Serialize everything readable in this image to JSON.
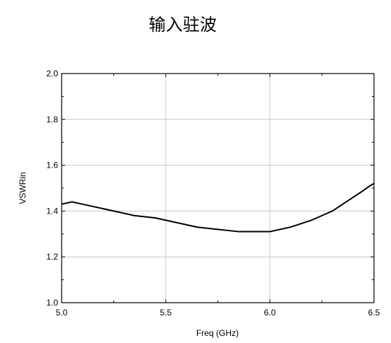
{
  "chart_data": {
    "type": "line",
    "title": "输入驻波",
    "xlabel": "Freq (GHz)",
    "ylabel": "VSWRin",
    "xlim": [
      5.0,
      6.5
    ],
    "ylim": [
      1.0,
      2.0
    ],
    "x_ticks": [
      5.0,
      5.5,
      6.0,
      6.5
    ],
    "x_tick_labels": [
      "5.0",
      "5.5",
      "6.0",
      "6.5"
    ],
    "y_ticks": [
      1.0,
      1.2,
      1.4,
      1.6,
      1.8,
      2.0
    ],
    "y_tick_labels": [
      "1.0",
      "1.2",
      "1.4",
      "1.6",
      "1.8",
      "2.0"
    ],
    "grid": true,
    "series": [
      {
        "color": "#000000",
        "x": [
          5.0,
          5.05,
          5.1,
          5.15,
          5.2,
          5.25,
          5.3,
          5.35,
          5.4,
          5.45,
          5.5,
          5.55,
          5.6,
          5.65,
          5.7,
          5.75,
          5.8,
          5.85,
          5.9,
          5.95,
          6.0,
          6.05,
          6.1,
          6.15,
          6.2,
          6.25,
          6.3,
          6.35,
          6.4,
          6.45,
          6.48,
          6.5
        ],
        "y": [
          1.43,
          1.44,
          1.43,
          1.42,
          1.41,
          1.4,
          1.39,
          1.38,
          1.375,
          1.37,
          1.36,
          1.35,
          1.34,
          1.33,
          1.325,
          1.32,
          1.315,
          1.31,
          1.31,
          1.31,
          1.31,
          1.32,
          1.33,
          1.345,
          1.36,
          1.38,
          1.4,
          1.43,
          1.46,
          1.49,
          1.51,
          1.52
        ]
      }
    ]
  }
}
